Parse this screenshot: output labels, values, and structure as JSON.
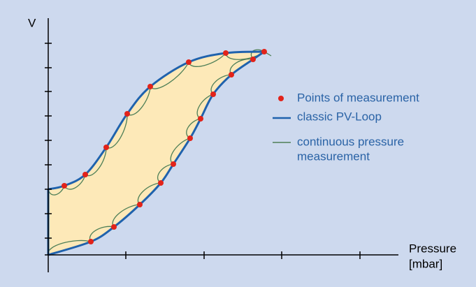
{
  "axes": {
    "y_label": "V",
    "x_label": [
      "Pressure",
      "[mbar]"
    ]
  },
  "legend": {
    "points": "Points of measurement",
    "classic": "classic PV-Loop",
    "continuous": [
      "continuous pressure",
      "measurement"
    ]
  }
}
